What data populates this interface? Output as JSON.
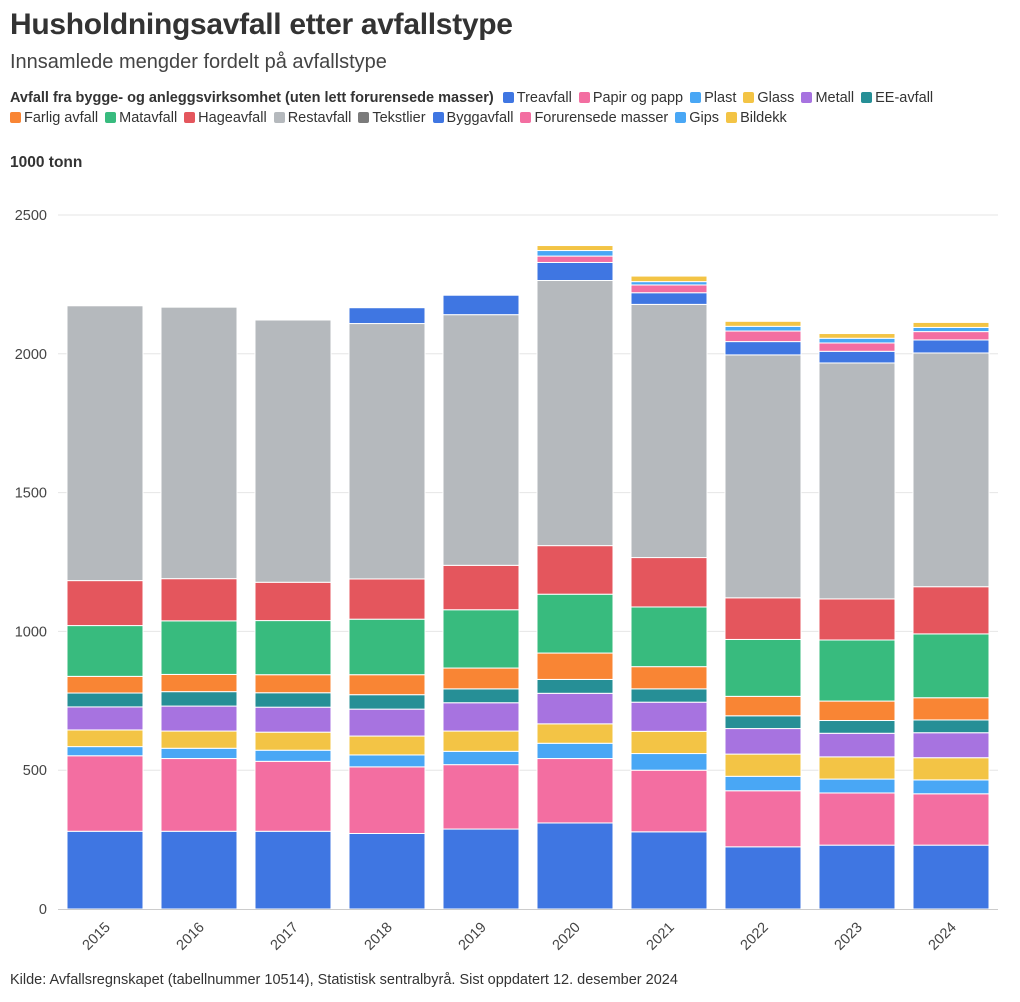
{
  "title": "Husholdningsavfall etter avfallstype",
  "subtitle": "Innsamlede mengder fordelt på avfallstype",
  "legend_title": "Avfall fra bygge- og anleggsvirksomhet (uten lett forurensede masser)",
  "unit_label": "1000 tonn",
  "source": "Kilde: Avfallsregnskapet (tabellnummer 10514), Statistisk sentralbyrå. Sist oppdatert 12. desember 2024",
  "chart_data": {
    "type": "bar",
    "stacked": true,
    "categories": [
      "2015",
      "2016",
      "2017",
      "2018",
      "2019",
      "2020",
      "2021",
      "2022",
      "2023",
      "2024"
    ],
    "ylim": [
      0,
      2600
    ],
    "yticks": [
      0,
      500,
      1000,
      1500,
      2000,
      2500
    ],
    "ylabel": "1000 tonn",
    "grid": true,
    "series": [
      {
        "name": "Treavfall",
        "color": "#3f76e2",
        "values": [
          280,
          280,
          280,
          272,
          288,
          310,
          278,
          224,
          230,
          230
        ]
      },
      {
        "name": "Papir og papp",
        "color": "#f36ea1",
        "values": [
          272,
          262,
          252,
          240,
          232,
          232,
          222,
          202,
          188,
          185
        ]
      },
      {
        "name": "Plast",
        "color": "#49a7f5",
        "values": [
          33,
          37,
          40,
          43,
          48,
          55,
          60,
          52,
          50,
          50
        ]
      },
      {
        "name": "Glass",
        "color": "#f3c445",
        "values": [
          60,
          62,
          65,
          68,
          73,
          70,
          80,
          80,
          80,
          80
        ]
      },
      {
        "name": "Metall",
        "color": "#a773e0",
        "values": [
          83,
          90,
          90,
          97,
          102,
          110,
          105,
          92,
          85,
          90
        ]
      },
      {
        "name": "EE-avfall",
        "color": "#268f96",
        "values": [
          50,
          52,
          52,
          52,
          50,
          50,
          48,
          46,
          46,
          46
        ]
      },
      {
        "name": "Farlig avfall",
        "color": "#f98534",
        "values": [
          60,
          62,
          65,
          72,
          75,
          95,
          80,
          70,
          70,
          80
        ]
      },
      {
        "name": "Matavfall",
        "color": "#38bb7e",
        "values": [
          183,
          193,
          195,
          200,
          210,
          212,
          215,
          205,
          220,
          230
        ]
      },
      {
        "name": "Hageavfall",
        "color": "#e4565d",
        "values": [
          162,
          152,
          138,
          145,
          160,
          175,
          178,
          150,
          148,
          170
        ]
      },
      {
        "name": "Restavfall",
        "color": "#b5b9bd",
        "values": [
          990,
          978,
          945,
          920,
          903,
          955,
          912,
          875,
          850,
          842
        ]
      },
      {
        "name": "Tekstlier",
        "color": "#7b7b7b",
        "values": [
          0,
          0,
          3,
          0,
          0,
          0,
          0,
          0,
          0,
          0
        ]
      },
      {
        "name": "Byggavfall",
        "color": "#3f76e2",
        "values": [
          0,
          0,
          0,
          57,
          70,
          65,
          42,
          48,
          42,
          47
        ]
      },
      {
        "name": "Forurensede masser",
        "color": "#f36ea1",
        "values": [
          0,
          0,
          0,
          0,
          0,
          23,
          28,
          38,
          30,
          30
        ]
      },
      {
        "name": "Gips",
        "color": "#49a7f5",
        "values": [
          0,
          0,
          0,
          0,
          0,
          20,
          12,
          17,
          17,
          15
        ]
      },
      {
        "name": "Bildekk",
        "color": "#f3c445",
        "values": [
          0,
          0,
          0,
          0,
          0,
          18,
          20,
          18,
          17,
          18
        ]
      }
    ]
  }
}
